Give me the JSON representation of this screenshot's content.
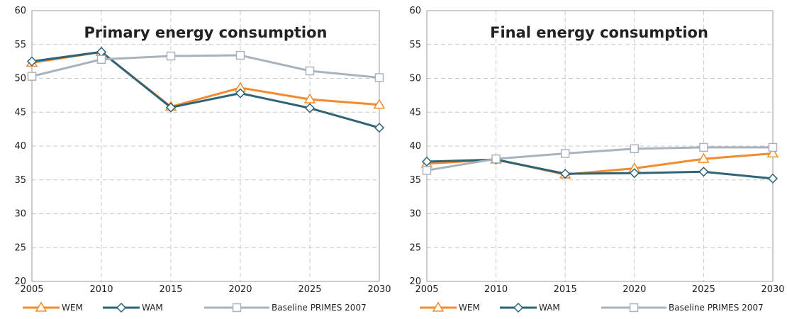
{
  "chart_data": [
    {
      "type": "line",
      "title": "Primary energy consumption",
      "xlabel": "",
      "ylabel": "",
      "x": [
        2005,
        2010,
        2015,
        2020,
        2025,
        2030
      ],
      "ylim": [
        20,
        60
      ],
      "yticks": [
        20,
        25,
        30,
        35,
        40,
        45,
        50,
        55,
        60
      ],
      "grid": true,
      "legend_position": "bottom",
      "series": [
        {
          "name": "WEM",
          "color": "#f28a2e",
          "marker": "triangle",
          "x": [
            2005,
            2010,
            2015,
            2020,
            2025,
            2030
          ],
          "values": [
            52.3,
            53.9,
            45.8,
            48.6,
            46.9,
            46.1
          ]
        },
        {
          "name": "WAM",
          "color": "#2e6475",
          "marker": "diamond",
          "x": [
            2005,
            2010,
            2015,
            2020,
            2025,
            2030
          ],
          "values": [
            52.5,
            53.9,
            45.7,
            47.8,
            45.6,
            42.7
          ]
        },
        {
          "name": "Baseline PRIMES 2007",
          "color": "#a9b3be",
          "marker": "square",
          "x": [
            2005,
            2010,
            2015,
            2020,
            2025,
            2030
          ],
          "values": [
            50.3,
            52.8,
            53.3,
            53.4,
            51.1,
            50.1
          ]
        }
      ]
    },
    {
      "type": "line",
      "title": "Final energy consumption",
      "xlabel": "",
      "ylabel": "",
      "x": [
        2005,
        2010,
        2015,
        2020,
        2025,
        2030
      ],
      "ylim": [
        20,
        60
      ],
      "yticks": [
        20,
        25,
        30,
        35,
        40,
        45,
        50,
        55,
        60
      ],
      "grid": true,
      "legend_position": "bottom",
      "series": [
        {
          "name": "WEM",
          "color": "#f28a2e",
          "marker": "triangle",
          "x": [
            2005,
            2010,
            2015,
            2020,
            2025,
            2030
          ],
          "values": [
            37.4,
            38.0,
            35.8,
            36.7,
            38.1,
            38.9
          ]
        },
        {
          "name": "WAM",
          "color": "#2e6475",
          "marker": "diamond",
          "x": [
            2005,
            2010,
            2015,
            2020,
            2025,
            2030
          ],
          "values": [
            37.7,
            38.0,
            35.9,
            36.0,
            36.2,
            35.2
          ]
        },
        {
          "name": "Baseline PRIMES 2007",
          "color": "#a9b3be",
          "marker": "square",
          "x": [
            2005,
            2010,
            2015,
            2020,
            2025,
            2030
          ],
          "values": [
            36.4,
            38.1,
            38.9,
            39.6,
            39.8,
            39.8
          ]
        }
      ]
    }
  ]
}
